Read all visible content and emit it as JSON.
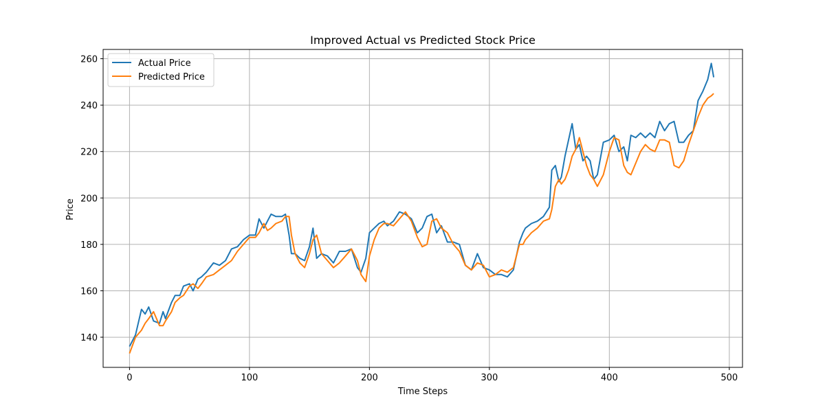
{
  "chart_data": {
    "type": "line",
    "title": "Improved Actual vs Predicted Stock Price",
    "xlabel": "Time Steps",
    "ylabel": "Price",
    "xlim": [
      -22,
      511
    ],
    "ylim": [
      127,
      264
    ],
    "xticks": [
      0,
      100,
      200,
      300,
      400,
      500
    ],
    "yticks": [
      140,
      160,
      180,
      200,
      220,
      240,
      260
    ],
    "grid": true,
    "legend": "top-left",
    "series": [
      {
        "name": "Actual Price",
        "color": "#1f77b4",
        "x": [
          0,
          5,
          10,
          13,
          16,
          20,
          25,
          28,
          30,
          35,
          38,
          42,
          45,
          50,
          53,
          57,
          60,
          64,
          70,
          75,
          80,
          85,
          90,
          95,
          100,
          105,
          108,
          112,
          115,
          118,
          122,
          127,
          130,
          133,
          135,
          138,
          142,
          146,
          150,
          153,
          156,
          160,
          165,
          170,
          175,
          180,
          185,
          190,
          193,
          197,
          200,
          204,
          208,
          212,
          215,
          220,
          225,
          230,
          235,
          240,
          244,
          248,
          252,
          256,
          260,
          265,
          270,
          275,
          280,
          285,
          290,
          295,
          300,
          305,
          310,
          315,
          320,
          325,
          328,
          330,
          335,
          340,
          345,
          350,
          352,
          355,
          358,
          360,
          363,
          366,
          369,
          372,
          375,
          378,
          381,
          384,
          387,
          390,
          395,
          400,
          404,
          408,
          412,
          415,
          418,
          422,
          426,
          430,
          434,
          438,
          442,
          446,
          450,
          454,
          458,
          462,
          466,
          470,
          474,
          478,
          482,
          485,
          487
        ],
        "y": [
          136,
          141,
          152,
          150,
          153,
          147,
          146,
          151,
          148,
          155,
          158,
          158,
          162,
          163,
          160,
          165,
          166,
          168,
          172,
          171,
          173,
          178,
          179,
          182,
          184,
          184,
          191,
          187,
          190,
          193,
          192,
          192,
          193,
          184,
          176,
          176,
          174,
          173,
          179,
          187,
          174,
          176,
          175,
          172,
          177,
          177,
          178,
          170,
          168,
          174,
          185,
          187,
          189,
          190,
          188,
          190,
          194,
          193,
          191,
          185,
          187,
          192,
          193,
          185,
          188,
          181,
          181,
          180,
          171,
          169,
          176,
          170,
          169,
          167,
          167,
          166,
          169,
          181,
          185,
          187,
          189,
          190,
          192,
          196,
          212,
          214,
          207,
          209,
          218,
          225,
          232,
          221,
          223,
          216,
          218,
          216,
          208,
          210,
          224,
          225,
          227,
          220,
          222,
          216,
          227,
          226,
          228,
          226,
          228,
          226,
          233,
          229,
          232,
          233,
          224,
          224,
          227,
          229,
          242,
          246,
          251,
          258,
          252
        ]
      },
      {
        "name": "Predicted Price",
        "color": "#ff7f0e",
        "x": [
          0,
          5,
          10,
          13,
          16,
          20,
          25,
          28,
          30,
          35,
          38,
          42,
          45,
          50,
          53,
          57,
          60,
          64,
          70,
          75,
          80,
          85,
          90,
          95,
          100,
          105,
          108,
          112,
          115,
          118,
          122,
          127,
          130,
          133,
          135,
          138,
          142,
          146,
          150,
          153,
          156,
          160,
          165,
          170,
          175,
          180,
          185,
          190,
          193,
          197,
          200,
          204,
          208,
          212,
          215,
          220,
          225,
          230,
          235,
          240,
          244,
          248,
          252,
          256,
          260,
          265,
          270,
          275,
          280,
          285,
          290,
          295,
          300,
          305,
          310,
          315,
          320,
          325,
          328,
          330,
          335,
          340,
          345,
          350,
          352,
          355,
          358,
          360,
          363,
          366,
          369,
          372,
          375,
          378,
          381,
          384,
          387,
          390,
          395,
          400,
          404,
          408,
          412,
          415,
          418,
          422,
          426,
          430,
          434,
          438,
          442,
          446,
          450,
          454,
          458,
          462,
          466,
          470,
          474,
          478,
          482,
          485,
          487
        ],
        "y": [
          133,
          140,
          143,
          146,
          148,
          151,
          145,
          145,
          147,
          151,
          155,
          157,
          158,
          162,
          163,
          161,
          163,
          166,
          167,
          169,
          171,
          173,
          177,
          180,
          183,
          183,
          185,
          189,
          186,
          187,
          189,
          190,
          192,
          192,
          184,
          176,
          172,
          170,
          176,
          182,
          184,
          176,
          173,
          170,
          172,
          175,
          178,
          173,
          167,
          164,
          175,
          182,
          187,
          189,
          189,
          188,
          191,
          194,
          190,
          183,
          179,
          180,
          190,
          191,
          187,
          185,
          180,
          177,
          171,
          169,
          172,
          171,
          166,
          167,
          169,
          168,
          170,
          180,
          180,
          182,
          185,
          187,
          190,
          191,
          195,
          205,
          208,
          206,
          208,
          212,
          218,
          221,
          226,
          220,
          214,
          210,
          208,
          205,
          210,
          220,
          226,
          225,
          214,
          211,
          210,
          215,
          220,
          223,
          221,
          220,
          225,
          225,
          224,
          214,
          213,
          216,
          223,
          229,
          235,
          240,
          243,
          244,
          245
        ]
      }
    ]
  }
}
